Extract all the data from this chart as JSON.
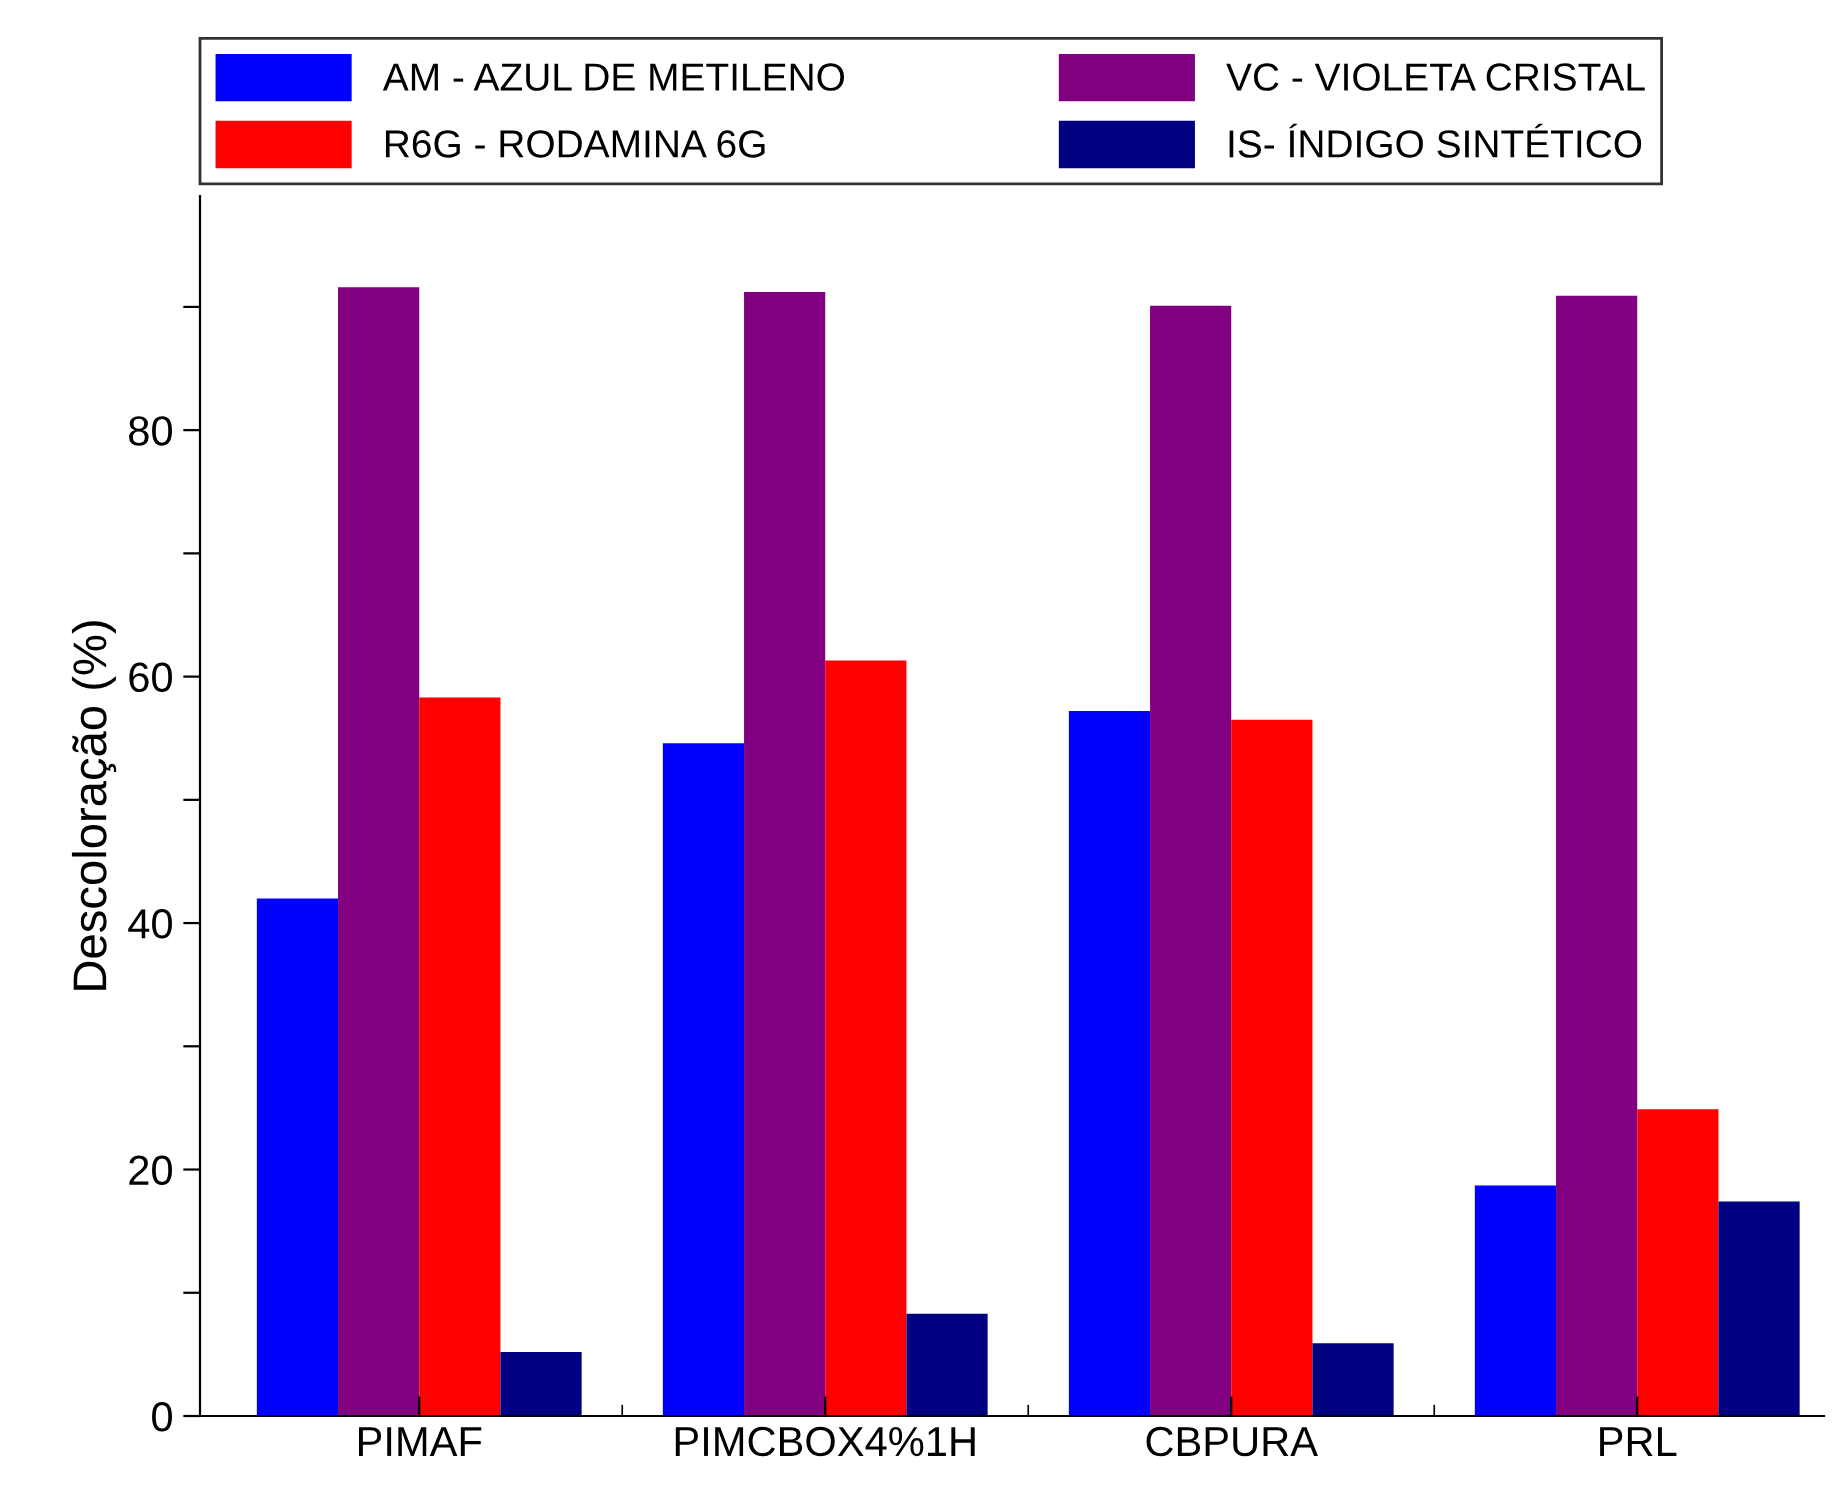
{
  "chart_data": {
    "type": "bar",
    "ylabel": "Descoloração (%)",
    "categories": [
      "PIMAF",
      "PIMCBOX4%1H",
      "CBPURA",
      "PRL"
    ],
    "series": [
      {
        "name": "AM - AZUL DE METILENO",
        "color": "#0000ff",
        "values": [
          42.0,
          54.6,
          57.2,
          18.7
        ]
      },
      {
        "name": "VC - VIOLETA CRISTAL",
        "color": "#800080",
        "values": [
          91.6,
          91.2,
          90.1,
          90.9
        ]
      },
      {
        "name": "R6G - RODAMINA 6G",
        "color": "#ff0000",
        "values": [
          58.3,
          61.3,
          56.5,
          24.9
        ]
      },
      {
        "name": "IS- ÍNDIGO SINTÉTICO",
        "color": "#000080",
        "values": [
          5.2,
          8.3,
          5.9,
          17.4
        ]
      }
    ],
    "ylim": [
      0,
      99
    ],
    "yticks": [
      0,
      {
        "value": 10,
        "label": null
      },
      20,
      {
        "value": 30,
        "label": null
      },
      40,
      {
        "value": 50,
        "label": null
      },
      60,
      {
        "value": 70,
        "label": null
      },
      80,
      {
        "value": 90,
        "label": null
      }
    ],
    "grid": false,
    "legend": "top"
  }
}
